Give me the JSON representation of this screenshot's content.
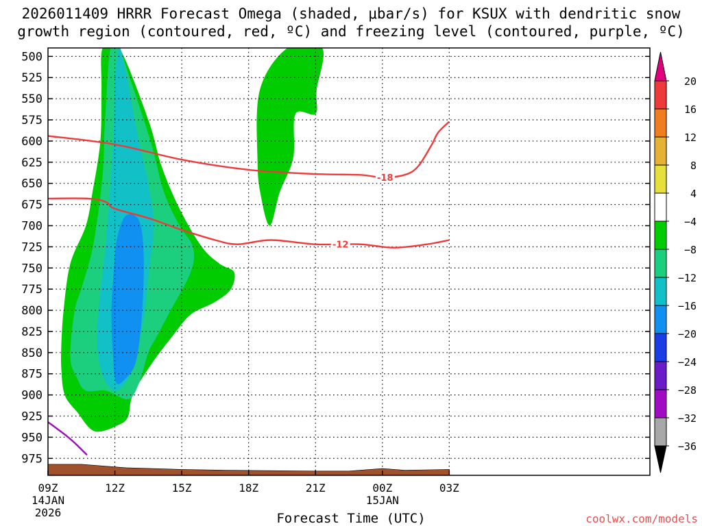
{
  "title": {
    "line1": "2026011409 HRRR Forecast Omega (shaded, μbar/s) for KSUX with dendritic snow",
    "line2": "growth region (contoured, red, ºC) and freezing level (contoured, purple, ºC)"
  },
  "credit": "coolwx.com/models",
  "chart_data": {
    "type": "contour",
    "title": "2026011409 HRRR Forecast Omega (shaded, μbar/s) for KSUX with dendritic snow growth region (contoured, red, ºC) and freezing level (contoured, purple, ºC)",
    "xlabel": "Forecast Time (UTC)",
    "ylabel": "",
    "x_hours": [
      9,
      36
    ],
    "x_ticks": [
      {
        "hour": 9,
        "label": "09Z",
        "sub1": "14JAN",
        "sub2": "2026"
      },
      {
        "hour": 12,
        "label": "12Z"
      },
      {
        "hour": 15,
        "label": "15Z"
      },
      {
        "hour": 18,
        "label": "18Z"
      },
      {
        "hour": 21,
        "label": "21Z"
      },
      {
        "hour": 24,
        "label": "00Z",
        "sub1": "15JAN"
      },
      {
        "hour": 27,
        "label": "03Z"
      }
    ],
    "y_ticks": [
      500,
      525,
      550,
      575,
      600,
      625,
      650,
      675,
      700,
      725,
      750,
      775,
      800,
      825,
      850,
      875,
      900,
      925,
      950,
      975
    ],
    "ylim": [
      490,
      995
    ],
    "grid": true,
    "colorbar": {
      "top_arrow_color": "#e0007e",
      "bottom_arrow_color": "#000000",
      "levels": [
        20,
        16,
        12,
        8,
        4,
        -4,
        -8,
        -12,
        -16,
        -20,
        -24,
        -28,
        -32,
        -36
      ],
      "bands": [
        {
          "range": "16 to 20",
          "color": "#ee3a3a"
        },
        {
          "range": "12 to 16",
          "color": "#ee7e1e"
        },
        {
          "range": "8 to 12",
          "color": "#e6b233"
        },
        {
          "range": "4 to 8",
          "color": "#e6e03c"
        },
        {
          "range": "-4 to 4",
          "color": "#ffffff"
        },
        {
          "range": "-8 to -4",
          "color": "#00cc00"
        },
        {
          "range": "-12 to -8",
          "color": "#1ccf7e"
        },
        {
          "range": "-16 to -12",
          "color": "#12c0c8"
        },
        {
          "range": "-20 to -16",
          "color": "#1090f0"
        },
        {
          "range": "-24 to -20",
          "color": "#1c3ce6"
        },
        {
          "range": "-28 to -24",
          "color": "#6a1cc8"
        },
        {
          "range": "-32 to -28",
          "color": "#a00cc0"
        },
        {
          "range": "-36 to -32",
          "color": "#a8a8a8"
        }
      ]
    },
    "omega_regions": [
      {
        "level": "-8 to -4",
        "color": "#00cc00",
        "polygon": [
          [
            11.45,
            490
          ],
          [
            12.2,
            490
          ],
          [
            13.5,
            575
          ],
          [
            14.1,
            630
          ],
          [
            14.9,
            680
          ],
          [
            15.9,
            725
          ],
          [
            16.7,
            745
          ],
          [
            17.35,
            755
          ],
          [
            17.2,
            775
          ],
          [
            16.5,
            790
          ],
          [
            15.4,
            805
          ],
          [
            14.6,
            830
          ],
          [
            13.6,
            865
          ],
          [
            12.8,
            900
          ],
          [
            12.6,
            925
          ],
          [
            12.2,
            935
          ],
          [
            11.1,
            943
          ],
          [
            10.3,
            920
          ],
          [
            9.75,
            900
          ],
          [
            9.6,
            870
          ],
          [
            9.6,
            840
          ],
          [
            9.7,
            800
          ],
          [
            10.0,
            745
          ],
          [
            10.7,
            700
          ],
          [
            11.0,
            660
          ],
          [
            11.35,
            600
          ],
          [
            11.4,
            540
          ]
        ]
      },
      {
        "level": "-8 to -4",
        "color": "#00cc00",
        "polygon": [
          [
            19.75,
            490
          ],
          [
            21.3,
            490
          ],
          [
            21.05,
            540
          ],
          [
            21.0,
            568
          ],
          [
            20.1,
            568
          ],
          [
            20.0,
            620
          ],
          [
            19.4,
            660
          ],
          [
            18.95,
            700
          ],
          [
            18.55,
            665
          ],
          [
            18.4,
            625
          ],
          [
            18.5,
            540
          ]
        ]
      },
      {
        "level": "-12 to -8",
        "color": "#1ccf7e",
        "polygon": [
          [
            11.8,
            490
          ],
          [
            12.2,
            490
          ],
          [
            12.6,
            520
          ],
          [
            13.6,
            600
          ],
          [
            14.2,
            660
          ],
          [
            14.9,
            700
          ],
          [
            15.5,
            725
          ],
          [
            15.4,
            755
          ],
          [
            14.4,
            805
          ],
          [
            13.9,
            830
          ],
          [
            13.5,
            850
          ],
          [
            13.1,
            885
          ],
          [
            12.6,
            905
          ],
          [
            11.6,
            895
          ],
          [
            10.7,
            895
          ],
          [
            10.3,
            880
          ],
          [
            10.0,
            855
          ],
          [
            10.2,
            800
          ],
          [
            10.55,
            770
          ],
          [
            11.05,
            720
          ],
          [
            11.45,
            640
          ],
          [
            11.55,
            580
          ]
        ]
      },
      {
        "level": "-16 to -12",
        "color": "#12c0c8",
        "polygon": [
          [
            12.2,
            490
          ],
          [
            12.5,
            520
          ],
          [
            13.0,
            590
          ],
          [
            13.5,
            650
          ],
          [
            13.75,
            700
          ],
          [
            13.55,
            750
          ],
          [
            13.35,
            800
          ],
          [
            13.1,
            835
          ],
          [
            12.8,
            870
          ],
          [
            12.1,
            895
          ],
          [
            11.5,
            880
          ],
          [
            11.2,
            840
          ],
          [
            11.3,
            790
          ],
          [
            11.6,
            720
          ],
          [
            11.8,
            650
          ],
          [
            11.95,
            590
          ],
          [
            12.0,
            530
          ]
        ]
      },
      {
        "level": "-20 to -16",
        "color": "#1090f0",
        "polygon": [
          [
            12.5,
            688
          ],
          [
            13.1,
            695
          ],
          [
            13.3,
            740
          ],
          [
            13.2,
            810
          ],
          [
            12.95,
            860
          ],
          [
            12.5,
            880
          ],
          [
            12.05,
            885
          ],
          [
            11.9,
            845
          ],
          [
            11.85,
            800
          ],
          [
            11.95,
            755
          ],
          [
            12.1,
            715
          ]
        ]
      }
    ],
    "contours": [
      {
        "label": "-18",
        "color": "#ee3a3a",
        "label_at": [
          24.0,
          643
        ],
        "points": [
          [
            9,
            594
          ],
          [
            12,
            604
          ],
          [
            15,
            622
          ],
          [
            18,
            634
          ],
          [
            21,
            639
          ],
          [
            23,
            640
          ],
          [
            24.0,
            643
          ],
          [
            25.0,
            640
          ],
          [
            25.6,
            630
          ],
          [
            26.2,
            605
          ],
          [
            26.5,
            590
          ],
          [
            27,
            577
          ]
        ]
      },
      {
        "label": "-12",
        "color": "#ee3a3a",
        "label_at": [
          22.0,
          722
        ],
        "points": [
          [
            9,
            668
          ],
          [
            10.8,
            668
          ],
          [
            11.6,
            672
          ],
          [
            12,
            680
          ],
          [
            13.5,
            691
          ],
          [
            15,
            705
          ],
          [
            16.5,
            717
          ],
          [
            17.5,
            722
          ],
          [
            19.0,
            717
          ],
          [
            21,
            722
          ],
          [
            23,
            722
          ],
          [
            24.5,
            726
          ],
          [
            26,
            722
          ],
          [
            27,
            717
          ]
        ]
      },
      {
        "label": "",
        "color": "#a00cc0",
        "points": [
          [
            9,
            932
          ],
          [
            10,
            952
          ],
          [
            10.75,
            971
          ]
        ]
      }
    ],
    "terrain": {
      "color": "#a0522d",
      "surface_points": [
        [
          9,
          982
        ],
        [
          10.5,
          982
        ],
        [
          12.5,
          986
        ],
        [
          15,
          988
        ],
        [
          17,
          989
        ],
        [
          21,
          990
        ],
        [
          22.5,
          990
        ],
        [
          24,
          987
        ],
        [
          25,
          989
        ],
        [
          27,
          988
        ]
      ]
    }
  }
}
